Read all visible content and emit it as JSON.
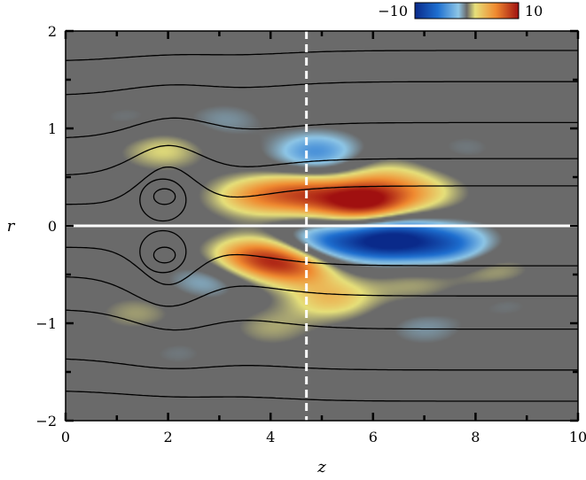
{
  "chart_data": {
    "type": "heatmap",
    "title": "",
    "xlabel": "z",
    "ylabel": "r",
    "xlim": [
      0,
      10
    ],
    "ylim": [
      -2,
      2
    ],
    "x_ticks": [
      0,
      2,
      4,
      6,
      8,
      10
    ],
    "y_ticks": [
      -2,
      -1,
      0,
      1,
      2
    ],
    "x_tick_labels": [
      "0",
      "2",
      "4",
      "6",
      "8",
      "10"
    ],
    "y_tick_labels": [
      "−2",
      "−1",
      "0",
      "1",
      "2"
    ],
    "grid": false,
    "colorbar": {
      "min": -10,
      "max": 10,
      "min_label": "−10",
      "max_label": "10",
      "placement": "top-right",
      "colors": [
        "#0a2a8a",
        "#1e6fd0",
        "#8ec6e6",
        "#6a6a6a",
        "#e6e07a",
        "#f08a30",
        "#a01010"
      ]
    },
    "marker_line": {
      "z": 4.7,
      "style": "dashed",
      "color": "#ffffff"
    },
    "symmetry_line": {
      "r": 0,
      "color": "#ffffff"
    },
    "blobs": [
      {
        "z": 5.8,
        "r": 0.24,
        "value": 10
      },
      {
        "z": 4.6,
        "r": 0.33,
        "value": 6
      },
      {
        "z": 3.6,
        "r": 0.3,
        "value": 4
      },
      {
        "z": 7.0,
        "r": 0.34,
        "value": 3
      },
      {
        "z": 6.2,
        "r": 0.52,
        "value": 2.5
      },
      {
        "z": 1.9,
        "r": 0.78,
        "value": 3
      },
      {
        "z": 4.9,
        "r": 0.75,
        "value": -5
      },
      {
        "z": 3.1,
        "r": 1.08,
        "value": -2
      },
      {
        "z": 1.2,
        "r": 1.1,
        "value": -1.5
      },
      {
        "z": 7.8,
        "r": 0.8,
        "value": -1.5
      },
      {
        "z": 6.3,
        "r": -0.14,
        "value": -10
      },
      {
        "z": 5.0,
        "r": -0.2,
        "value": -7
      },
      {
        "z": 7.5,
        "r": -0.2,
        "value": -6
      },
      {
        "z": 4.5,
        "r": -0.38,
        "value": 8
      },
      {
        "z": 3.6,
        "r": -0.32,
        "value": 6
      },
      {
        "z": 5.2,
        "r": -0.75,
        "value": 4
      },
      {
        "z": 6.8,
        "r": -0.6,
        "value": 2
      },
      {
        "z": 8.3,
        "r": -0.45,
        "value": 2.5
      },
      {
        "z": 2.8,
        "r": -0.55,
        "value": -3
      },
      {
        "z": 1.4,
        "r": -0.9,
        "value": 2
      },
      {
        "z": 4.0,
        "r": -1.05,
        "value": 2
      },
      {
        "z": 7.0,
        "r": -1.05,
        "value": -2
      },
      {
        "z": 2.2,
        "r": -1.3,
        "value": -1.5
      },
      {
        "z": 8.6,
        "r": -0.8,
        "value": -1.5
      }
    ],
    "streamlines": [
      {
        "r0": 0.22,
        "bump": 0.38,
        "center": 2.0,
        "width": 0.75,
        "far": 0.41
      },
      {
        "r0": 0.52,
        "bump": 0.3,
        "center": 2.0,
        "width": 0.95,
        "far": 0.69
      },
      {
        "r0": 0.9,
        "bump": 0.2,
        "center": 2.1,
        "width": 1.1,
        "far": 1.06
      },
      {
        "r0": 1.34,
        "bump": 0.1,
        "center": 2.1,
        "width": 1.3,
        "far": 1.48
      },
      {
        "r0": 1.69,
        "bump": 0.06,
        "center": 2.2,
        "width": 1.5,
        "far": 1.8
      },
      {
        "r0": -0.22,
        "bump": -0.38,
        "center": 2.0,
        "width": 0.75,
        "far": -0.41
      },
      {
        "r0": -0.52,
        "bump": -0.3,
        "center": 2.0,
        "width": 0.95,
        "far": -0.72
      },
      {
        "r0": -0.86,
        "bump": -0.2,
        "center": 2.1,
        "width": 1.1,
        "far": -1.06
      },
      {
        "r0": -1.36,
        "bump": -0.1,
        "center": 2.1,
        "width": 1.3,
        "far": -1.48
      },
      {
        "r0": -1.69,
        "bump": -0.06,
        "center": 2.2,
        "width": 1.5,
        "far": -1.8
      }
    ],
    "recirculation": [
      {
        "z_min": 1.45,
        "z_max": 2.35,
        "r_min": 0.05,
        "r_max": 0.48
      },
      {
        "z_min": 1.72,
        "z_max": 2.14,
        "r_min": 0.22,
        "r_max": 0.38
      },
      {
        "z_min": 1.45,
        "z_max": 2.35,
        "r_min": -0.48,
        "r_max": -0.05
      },
      {
        "z_min": 1.72,
        "z_max": 2.14,
        "r_min": -0.38,
        "r_max": -0.22
      }
    ]
  }
}
